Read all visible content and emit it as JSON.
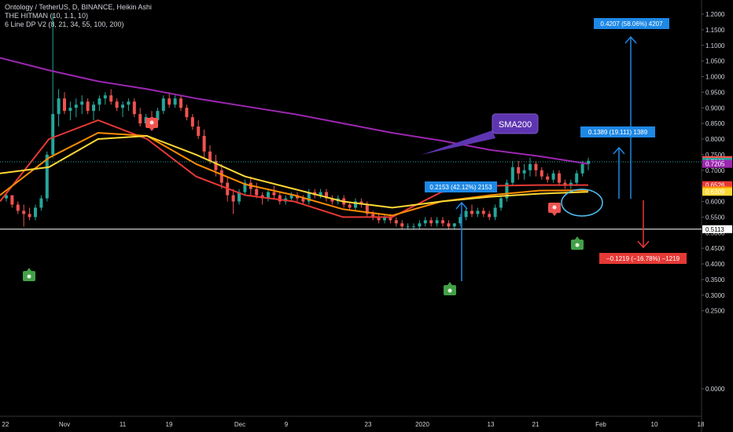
{
  "header": {
    "line1": "Ontology / TetherUS, D, BINANCE, Heikin Ashi",
    "line2": "THE HITMAN (10, 1.1, 10)",
    "line3": "6 Line DP V2 (8, 21, 34, 55, 100, 200)"
  },
  "colors": {
    "background": "#000000",
    "up": "#26a69a",
    "down": "#ef5350",
    "sma200": "#9c27b0",
    "ema_red": "#e53935",
    "ema_orange": "#fb8c00",
    "ema_yellow": "#fdd835",
    "measure_up": "#1e88e5",
    "measure_down": "#e53935",
    "text": "#d1d4dc"
  },
  "annotations": {
    "sma_callout": "SMA200",
    "measure_1": "0.2153 (42.12%) 2153",
    "measure_2": "0.1389 (19.111) 1389",
    "measure_3": "0.4207 (58.06%) 4207",
    "measure_down": "−0.1219 (−16.78%) −1219"
  },
  "chart_data": {
    "type": "candlestick",
    "symbol": "Ontology / TetherUS",
    "interval": "D",
    "exchange": "BINANCE",
    "chart_style": "Heikin Ashi",
    "ylim": [
      0.0,
      1.2
    ],
    "y_ticks": [
      "1.2000",
      "1.1500",
      "1.1000",
      "1.0500",
      "1.0000",
      "0.9500",
      "0.9000",
      "0.8500",
      "0.8000",
      "0.7500",
      "0.7000",
      "0.6500",
      "0.6000",
      "0.5500",
      "0.5000",
      "0.4500",
      "0.4000",
      "0.3500",
      "0.3000",
      "0.2500",
      "0.0000"
    ],
    "x_ticks": [
      "22",
      "Nov",
      "11",
      "19",
      "Dec",
      "9",
      "23",
      "2020",
      "13",
      "21",
      "Feb",
      "10",
      "18"
    ],
    "price_labels": [
      {
        "value": "0.7327",
        "color": "#ef5350"
      },
      {
        "value": "0.7269",
        "color": "#26a69a"
      },
      {
        "value": "0.7205",
        "color": "#9c27b0"
      },
      {
        "value": "0.6526",
        "color": "#e53935"
      },
      {
        "value": "0.6356",
        "color": "#fb8c00"
      },
      {
        "value": "0.6309",
        "color": "#fdd835"
      },
      {
        "value": "0.5113",
        "color": "#ffffff"
      }
    ],
    "horizontal_line": 0.5113,
    "candles": [
      [
        0.61,
        0.63,
        0.6,
        0.62
      ],
      [
        0.62,
        0.62,
        0.58,
        0.59
      ],
      [
        0.59,
        0.6,
        0.56,
        0.57
      ],
      [
        0.57,
        0.59,
        0.52,
        0.56
      ],
      [
        0.56,
        0.58,
        0.54,
        0.55
      ],
      [
        0.55,
        0.59,
        0.54,
        0.58
      ],
      [
        0.58,
        0.62,
        0.57,
        0.61
      ],
      [
        0.61,
        0.76,
        0.6,
        0.75
      ],
      [
        0.75,
        1.2,
        0.74,
        0.88
      ],
      [
        0.88,
        0.96,
        0.84,
        0.93
      ],
      [
        0.93,
        0.95,
        0.88,
        0.89
      ],
      [
        0.89,
        0.92,
        0.86,
        0.9
      ],
      [
        0.9,
        0.93,
        0.87,
        0.91
      ],
      [
        0.91,
        0.94,
        0.88,
        0.92
      ],
      [
        0.92,
        0.93,
        0.88,
        0.89
      ],
      [
        0.89,
        0.92,
        0.86,
        0.91
      ],
      [
        0.91,
        0.94,
        0.89,
        0.93
      ],
      [
        0.93,
        0.95,
        0.91,
        0.94
      ],
      [
        0.94,
        0.96,
        0.91,
        0.92
      ],
      [
        0.92,
        0.93,
        0.89,
        0.9
      ],
      [
        0.9,
        0.92,
        0.87,
        0.91
      ],
      [
        0.91,
        0.93,
        0.89,
        0.92
      ],
      [
        0.92,
        0.93,
        0.87,
        0.88
      ],
      [
        0.88,
        0.9,
        0.84,
        0.85
      ],
      [
        0.85,
        0.88,
        0.84,
        0.87
      ],
      [
        0.87,
        0.89,
        0.84,
        0.86
      ],
      [
        0.86,
        0.9,
        0.85,
        0.89
      ],
      [
        0.89,
        0.94,
        0.88,
        0.93
      ],
      [
        0.93,
        0.95,
        0.9,
        0.91
      ],
      [
        0.91,
        0.94,
        0.9,
        0.93
      ],
      [
        0.93,
        0.94,
        0.89,
        0.9
      ],
      [
        0.9,
        0.91,
        0.86,
        0.87
      ],
      [
        0.87,
        0.88,
        0.83,
        0.84
      ],
      [
        0.84,
        0.86,
        0.8,
        0.81
      ],
      [
        0.81,
        0.83,
        0.74,
        0.76
      ],
      [
        0.76,
        0.78,
        0.72,
        0.73
      ],
      [
        0.73,
        0.75,
        0.68,
        0.7
      ],
      [
        0.7,
        0.72,
        0.64,
        0.66
      ],
      [
        0.66,
        0.68,
        0.6,
        0.62
      ],
      [
        0.62,
        0.64,
        0.56,
        0.6
      ],
      [
        0.6,
        0.64,
        0.59,
        0.63
      ],
      [
        0.63,
        0.67,
        0.62,
        0.66
      ],
      [
        0.66,
        0.68,
        0.62,
        0.64
      ],
      [
        0.64,
        0.66,
        0.61,
        0.62
      ],
      [
        0.62,
        0.63,
        0.59,
        0.61
      ],
      [
        0.61,
        0.64,
        0.6,
        0.63
      ],
      [
        0.63,
        0.65,
        0.61,
        0.62
      ],
      [
        0.62,
        0.63,
        0.59,
        0.6
      ],
      [
        0.6,
        0.62,
        0.59,
        0.61
      ],
      [
        0.61,
        0.63,
        0.6,
        0.62
      ],
      [
        0.62,
        0.63,
        0.6,
        0.61
      ],
      [
        0.61,
        0.62,
        0.59,
        0.6
      ],
      [
        0.6,
        0.64,
        0.59,
        0.63
      ],
      [
        0.63,
        0.64,
        0.61,
        0.62
      ],
      [
        0.62,
        0.64,
        0.61,
        0.63
      ],
      [
        0.63,
        0.64,
        0.6,
        0.61
      ],
      [
        0.61,
        0.62,
        0.59,
        0.6
      ],
      [
        0.6,
        0.62,
        0.59,
        0.61
      ],
      [
        0.61,
        0.62,
        0.58,
        0.59
      ],
      [
        0.59,
        0.6,
        0.57,
        0.58
      ],
      [
        0.58,
        0.61,
        0.57,
        0.6
      ],
      [
        0.6,
        0.61,
        0.58,
        0.59
      ],
      [
        0.59,
        0.6,
        0.55,
        0.56
      ],
      [
        0.56,
        0.57,
        0.54,
        0.55
      ],
      [
        0.55,
        0.56,
        0.53,
        0.54
      ],
      [
        0.54,
        0.56,
        0.53,
        0.55
      ],
      [
        0.55,
        0.56,
        0.53,
        0.54
      ],
      [
        0.54,
        0.55,
        0.52,
        0.53
      ],
      [
        0.53,
        0.54,
        0.51,
        0.52
      ],
      [
        0.52,
        0.53,
        0.51,
        0.52
      ],
      [
        0.52,
        0.53,
        0.51,
        0.52
      ],
      [
        0.52,
        0.54,
        0.51,
        0.53
      ],
      [
        0.53,
        0.55,
        0.52,
        0.54
      ],
      [
        0.54,
        0.55,
        0.52,
        0.53
      ],
      [
        0.53,
        0.55,
        0.52,
        0.54
      ],
      [
        0.54,
        0.55,
        0.52,
        0.53
      ],
      [
        0.53,
        0.54,
        0.51,
        0.52
      ],
      [
        0.52,
        0.53,
        0.51,
        0.53
      ],
      [
        0.53,
        0.56,
        0.52,
        0.55
      ],
      [
        0.55,
        0.58,
        0.54,
        0.57
      ],
      [
        0.57,
        0.59,
        0.55,
        0.56
      ],
      [
        0.56,
        0.58,
        0.55,
        0.57
      ],
      [
        0.57,
        0.58,
        0.55,
        0.56
      ],
      [
        0.56,
        0.57,
        0.54,
        0.55
      ],
      [
        0.55,
        0.59,
        0.54,
        0.58
      ],
      [
        0.58,
        0.62,
        0.57,
        0.61
      ],
      [
        0.61,
        0.67,
        0.6,
        0.66
      ],
      [
        0.66,
        0.73,
        0.65,
        0.71
      ],
      [
        0.71,
        0.73,
        0.67,
        0.69
      ],
      [
        0.69,
        0.72,
        0.67,
        0.7
      ],
      [
        0.7,
        0.74,
        0.68,
        0.72
      ],
      [
        0.72,
        0.73,
        0.68,
        0.7
      ],
      [
        0.7,
        0.71,
        0.67,
        0.68
      ],
      [
        0.68,
        0.69,
        0.66,
        0.67
      ],
      [
        0.67,
        0.7,
        0.66,
        0.69
      ],
      [
        0.69,
        0.7,
        0.65,
        0.66
      ],
      [
        0.66,
        0.67,
        0.64,
        0.65
      ],
      [
        0.65,
        0.67,
        0.64,
        0.66
      ],
      [
        0.66,
        0.7,
        0.65,
        0.69
      ],
      [
        0.69,
        0.73,
        0.68,
        0.72
      ],
      [
        0.72,
        0.74,
        0.7,
        0.73
      ]
    ],
    "series": [
      {
        "color": "#9c27b0",
        "values": [
          1.06,
          1.02,
          0.985,
          0.96,
          0.93,
          0.905,
          0.88,
          0.85,
          0.82,
          0.795,
          0.765,
          0.745,
          0.7205
        ]
      },
      {
        "color": "#e53935",
        "values": [
          0.6,
          0.8,
          0.86,
          0.8,
          0.68,
          0.62,
          0.6,
          0.55,
          0.55,
          0.63,
          0.65,
          0.6526,
          0.6526
        ]
      },
      {
        "color": "#fb8c00",
        "values": [
          0.62,
          0.74,
          0.82,
          0.81,
          0.72,
          0.655,
          0.62,
          0.575,
          0.555,
          0.6,
          0.62,
          0.635,
          0.6356
        ]
      },
      {
        "color": "#fdd835",
        "values": [
          0.69,
          0.71,
          0.8,
          0.81,
          0.75,
          0.68,
          0.64,
          0.6,
          0.58,
          0.6,
          0.615,
          0.625,
          0.6309
        ]
      }
    ]
  }
}
